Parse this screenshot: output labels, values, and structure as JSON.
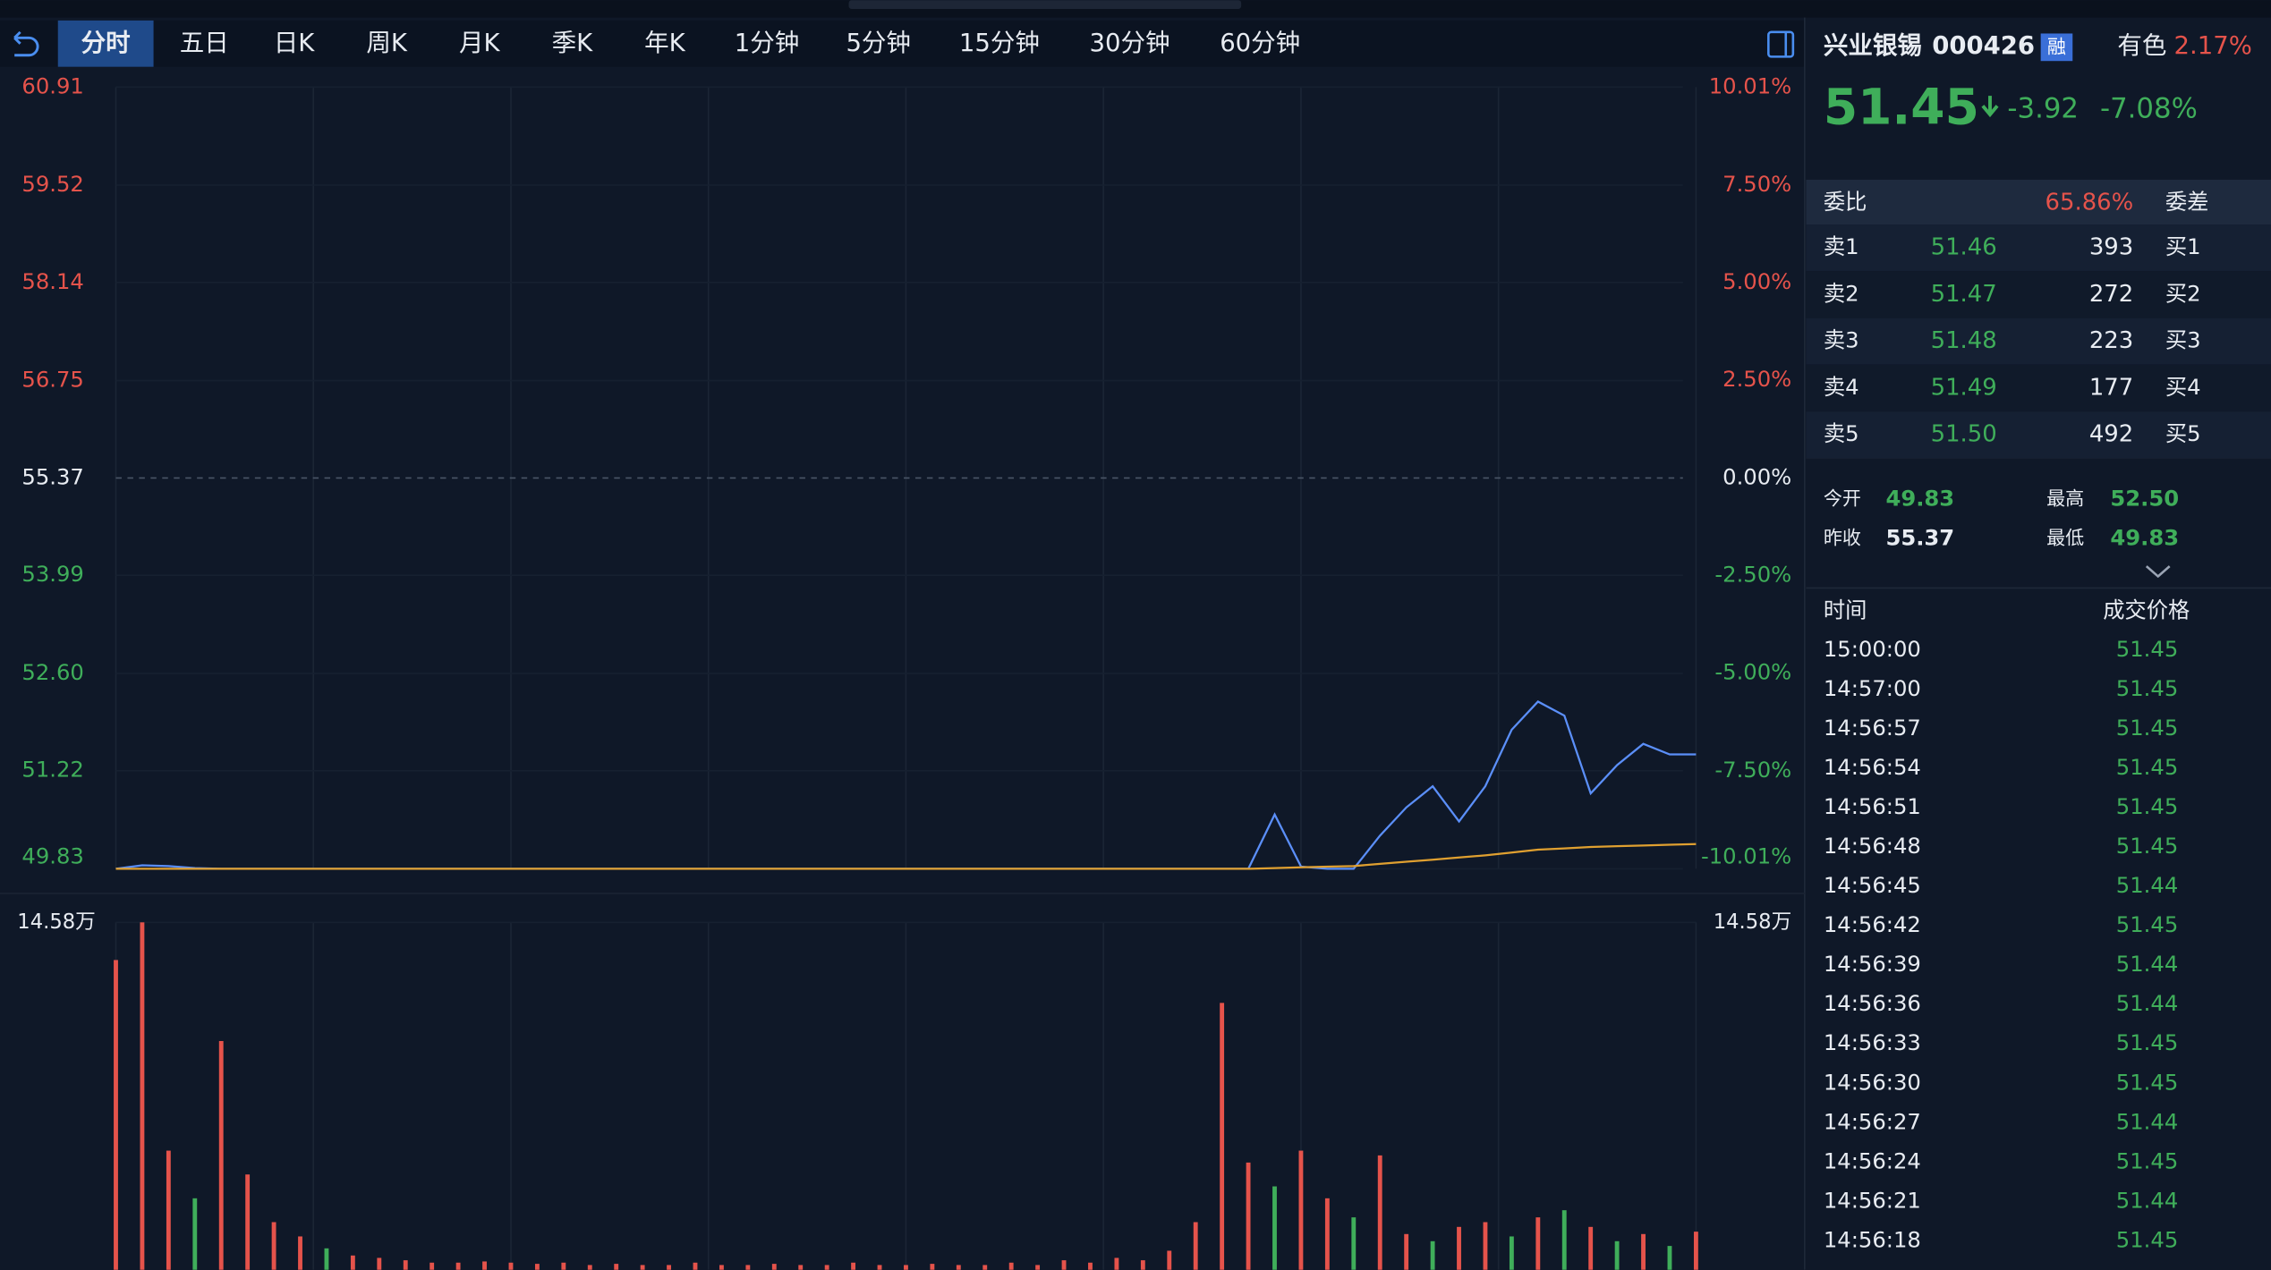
{
  "tabs": [
    "分时",
    "五日",
    "日K",
    "周K",
    "月K",
    "季K",
    "年K",
    "1分钟",
    "5分钟",
    "15分钟",
    "30分钟",
    "60分钟"
  ],
  "active_tab": 0,
  "chart_data": [
    {
      "type": "line",
      "ylim": [
        49.83,
        60.91
      ],
      "yticks": [
        60.91,
        59.52,
        58.14,
        56.75,
        55.37,
        53.99,
        {
          "value": 52.6,
          "label": "52.60"
        },
        51.22,
        49.83
      ],
      "y2lim": [
        -10.01,
        10.01
      ],
      "y2ticks": [
        {
          "value": 10.01,
          "label": "10.01%"
        },
        {
          "value": 7.5,
          "label": "7.50%"
        },
        {
          "value": 5,
          "label": "5.00%"
        },
        {
          "value": 2.5,
          "label": "2.50%"
        },
        {
          "value": 0,
          "label": "0.00%"
        },
        {
          "value": -2.5,
          "label": "-2.50%"
        },
        {
          "value": -5,
          "label": "-5.00%"
        },
        {
          "value": -7.5,
          "label": "-7.50%"
        },
        {
          "value": -10.01,
          "label": "-10.01%"
        }
      ],
      "series": [
        {
          "color": "#5b8ff9",
          "values": [
            49.83,
            49.88,
            49.87,
            49.84,
            49.83,
            49.83,
            49.83,
            49.83,
            49.83,
            49.83,
            49.83,
            49.83,
            49.83,
            49.83,
            49.83,
            49.83,
            49.83,
            49.83,
            49.83,
            49.83,
            49.83,
            49.83,
            49.83,
            49.83,
            49.83,
            49.83,
            49.83,
            49.83,
            49.83,
            49.83,
            49.83,
            49.83,
            49.83,
            49.83,
            49.83,
            49.83,
            49.83,
            49.83,
            49.83,
            49.83,
            49.83,
            49.83,
            49.83,
            49.83,
            50.6,
            49.86,
            49.83,
            49.83,
            50.3,
            50.7,
            51.0,
            50.5,
            51.0,
            51.8,
            52.2,
            52.0,
            50.9,
            51.3,
            51.6,
            51.45,
            51.45
          ]
        },
        {
          "color": "#e0a030",
          "values": [
            49.83,
            49.83,
            49.83,
            49.83,
            49.83,
            49.83,
            49.83,
            49.83,
            49.83,
            49.83,
            49.83,
            49.83,
            49.83,
            49.83,
            49.83,
            49.83,
            49.83,
            49.83,
            49.83,
            49.83,
            49.83,
            49.83,
            49.83,
            49.83,
            49.83,
            49.83,
            49.83,
            49.83,
            49.83,
            49.83,
            49.83,
            49.83,
            49.83,
            49.83,
            49.83,
            49.83,
            49.83,
            49.83,
            49.83,
            49.83,
            49.83,
            49.83,
            49.83,
            49.83,
            49.84,
            49.85,
            49.86,
            49.87,
            49.9,
            49.93,
            49.96,
            49.99,
            50.02,
            50.06,
            50.1,
            50.12,
            50.14,
            50.15,
            50.16,
            50.17,
            50.18
          ]
        }
      ]
    },
    {
      "type": "bar",
      "ylim": [
        0,
        145800
      ],
      "yticks": [
        {
          "value": 145800,
          "label": "14.58万"
        }
      ],
      "values": [
        130000,
        145800,
        50000,
        30000,
        96000,
        40000,
        20000,
        14000,
        9000,
        6000,
        5000,
        4000,
        3000,
        3000,
        3500,
        3000,
        2500,
        3000,
        2000,
        2500,
        2000,
        2000,
        3000,
        2000,
        2000,
        2500,
        2000,
        2000,
        3000,
        2000,
        2000,
        2500,
        2000,
        2000,
        3000,
        2000,
        4000,
        3000,
        5000,
        4000,
        8000,
        20000,
        112000,
        45000,
        35000,
        50000,
        30000,
        22000,
        48000,
        15000,
        12000,
        18000,
        20000,
        14000,
        22000,
        25000,
        18000,
        12000,
        15000,
        10000,
        16000
      ],
      "colors": [
        "#e5534b",
        "#e5534b",
        "#e5534b",
        "#3fae5a",
        "#e5534b",
        "#e5534b",
        "#e5534b",
        "#e5534b",
        "#3fae5a",
        "#e5534b",
        "#e5534b",
        "#e5534b",
        "#e5534b",
        "#e5534b",
        "#e5534b",
        "#e5534b",
        "#e5534b",
        "#e5534b",
        "#e5534b",
        "#e5534b",
        "#e5534b",
        "#e5534b",
        "#e5534b",
        "#e5534b",
        "#e5534b",
        "#e5534b",
        "#e5534b",
        "#e5534b",
        "#e5534b",
        "#e5534b",
        "#e5534b",
        "#e5534b",
        "#e5534b",
        "#e5534b",
        "#e5534b",
        "#e5534b",
        "#e5534b",
        "#e5534b",
        "#e5534b",
        "#e5534b",
        "#e5534b",
        "#e5534b",
        "#e5534b",
        "#e5534b",
        "#3fae5a",
        "#e5534b",
        "#e5534b",
        "#3fae5a",
        "#e5534b",
        "#e5534b",
        "#3fae5a",
        "#e5534b",
        "#e5534b",
        "#3fae5a",
        "#e5534b",
        "#3fae5a",
        "#e5534b",
        "#3fae5a",
        "#e5534b",
        "#3fae5a",
        "#e5534b"
      ]
    }
  ],
  "header": {
    "name": "兴业银锡",
    "code": "000426",
    "badge": "融",
    "sector": "有色",
    "sector_change": "2.17%"
  },
  "quote": {
    "price": "51.45",
    "change": "-3.92",
    "change_pct": "-7.08%"
  },
  "order_book": {
    "header": [
      "委比",
      "65.86%",
      "委差"
    ],
    "rows": [
      [
        "卖1",
        "51.46",
        "393",
        "买1"
      ],
      [
        "卖2",
        "51.47",
        "272",
        "买2"
      ],
      [
        "卖3",
        "51.48",
        "223",
        "买3"
      ],
      [
        "卖4",
        "51.49",
        "177",
        "买4"
      ],
      [
        "卖5",
        "51.50",
        "492",
        "买5"
      ]
    ]
  },
  "stats": [
    [
      "今开",
      "49.83",
      "最高",
      "52.50"
    ],
    [
      "昨收",
      "55.37",
      "最低",
      "49.83"
    ]
  ],
  "trades": {
    "headers": [
      "时间",
      "成交价格"
    ],
    "rows": [
      [
        "15:00:00",
        "51.45"
      ],
      [
        "14:57:00",
        "51.45"
      ],
      [
        "14:56:57",
        "51.45"
      ],
      [
        "14:56:54",
        "51.45"
      ],
      [
        "14:56:51",
        "51.45"
      ],
      [
        "14:56:48",
        "51.45"
      ],
      [
        "14:56:45",
        "51.44"
      ],
      [
        "14:56:42",
        "51.45"
      ],
      [
        "14:56:39",
        "51.44"
      ],
      [
        "14:56:36",
        "51.44"
      ],
      [
        "14:56:33",
        "51.45"
      ],
      [
        "14:56:30",
        "51.45"
      ],
      [
        "14:56:27",
        "51.44"
      ],
      [
        "14:56:24",
        "51.45"
      ],
      [
        "14:56:21",
        "51.44"
      ],
      [
        "14:56:18",
        "51.45"
      ]
    ]
  }
}
